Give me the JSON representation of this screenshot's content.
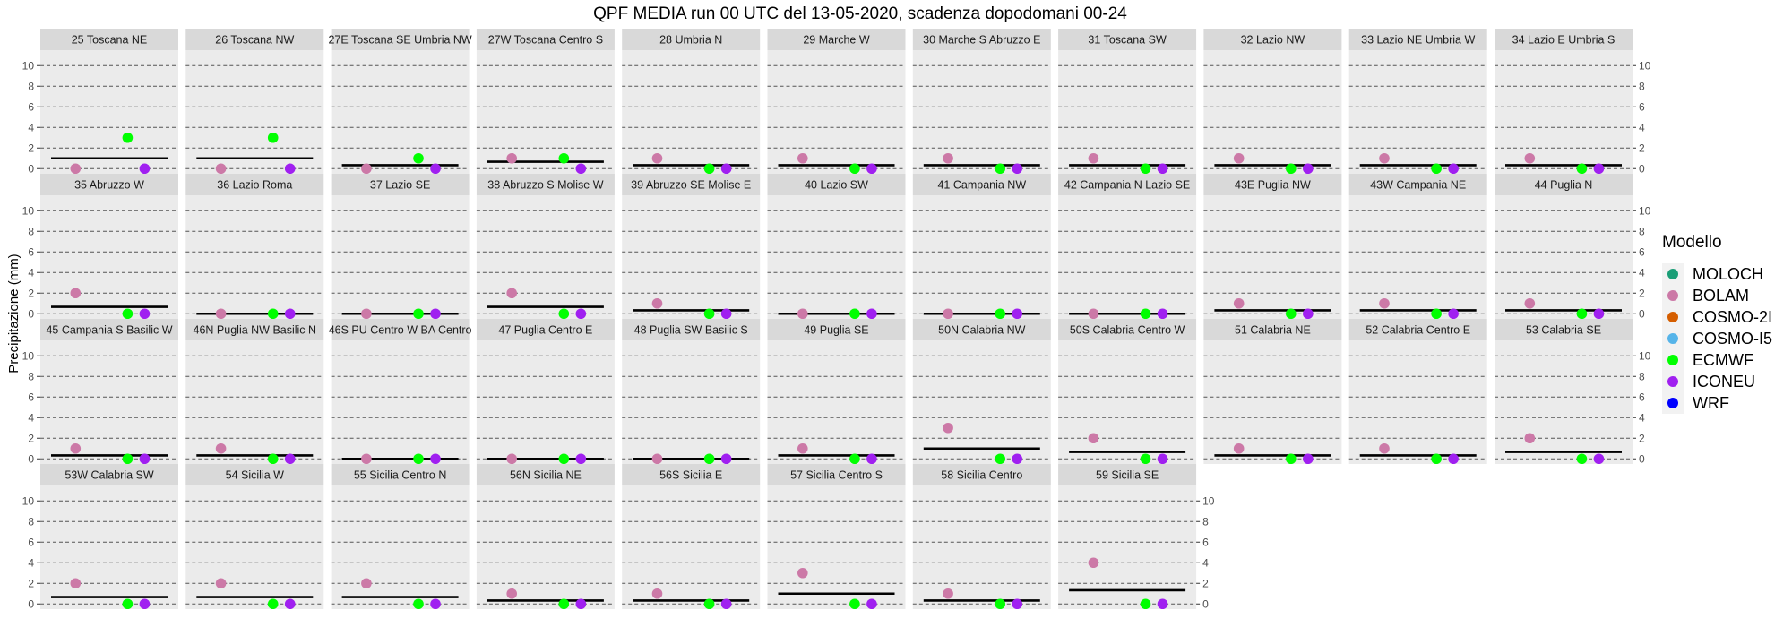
{
  "chart_data": {
    "type": "scatter",
    "title": "QPF MEDIA run 00 UTC del 13-05-2020, scadenza dopodomani 00-24",
    "ylabel": "Precipitazione  (mm)",
    "ylim": [
      -0.5,
      11.5
    ],
    "yticks": [
      0,
      2,
      4,
      6,
      8,
      10
    ],
    "grid": true,
    "legend": {
      "title": "Modello",
      "position": "right",
      "entries": [
        {
          "name": "MOLOCH",
          "color": "#1b9e77"
        },
        {
          "name": "BOLAM",
          "color": "#cc79a7"
        },
        {
          "name": "COSMO-2I",
          "color": "#d55e00"
        },
        {
          "name": "COSMO-I5",
          "color": "#56b4e9"
        },
        {
          "name": "ECMWF",
          "color": "#00ff00"
        },
        {
          "name": "ICONEU",
          "color": "#a020f0"
        },
        {
          "name": "WRF",
          "color": "#0000ff"
        }
      ]
    },
    "series_colors": {
      "BOLAM": "#cc79a7",
      "ECMWF": "#00ff00",
      "ICONEU": "#a020f0"
    },
    "panels": [
      {
        "label": "25 Toscana NE",
        "BOLAM": 0,
        "ECMWF": 3,
        "ICONEU": 0,
        "mean": 1.0
      },
      {
        "label": "26 Toscana NW",
        "BOLAM": 0,
        "ECMWF": 3,
        "ICONEU": 0,
        "mean": 1.0
      },
      {
        "label": "27E Toscana SE Umbria NW",
        "BOLAM": 0,
        "ECMWF": 1,
        "ICONEU": 0,
        "mean": 0.33
      },
      {
        "label": "27W Toscana Centro S",
        "BOLAM": 1,
        "ECMWF": 1,
        "ICONEU": 0,
        "mean": 0.67
      },
      {
        "label": "28 Umbria N",
        "BOLAM": 1,
        "ECMWF": 0,
        "ICONEU": 0,
        "mean": 0.33
      },
      {
        "label": "29 Marche W",
        "BOLAM": 1,
        "ECMWF": 0,
        "ICONEU": 0,
        "mean": 0.33
      },
      {
        "label": "30 Marche S Abruzzo E",
        "BOLAM": 1,
        "ECMWF": 0,
        "ICONEU": 0,
        "mean": 0.33
      },
      {
        "label": "31 Toscana SW",
        "BOLAM": 1,
        "ECMWF": 0,
        "ICONEU": 0,
        "mean": 0.33
      },
      {
        "label": "32 Lazio NW",
        "BOLAM": 1,
        "ECMWF": 0,
        "ICONEU": 0,
        "mean": 0.33
      },
      {
        "label": "33 Lazio NE Umbria W",
        "BOLAM": 1,
        "ECMWF": 0,
        "ICONEU": 0,
        "mean": 0.33
      },
      {
        "label": "34 Lazio E Umbria S",
        "BOLAM": 1,
        "ECMWF": 0,
        "ICONEU": 0,
        "mean": 0.33
      },
      {
        "label": "35 Abruzzo W",
        "BOLAM": 2,
        "ECMWF": 0,
        "ICONEU": 0,
        "mean": 0.67
      },
      {
        "label": "36 Lazio Roma",
        "BOLAM": 0,
        "ECMWF": 0,
        "ICONEU": 0,
        "mean": 0
      },
      {
        "label": "37 Lazio SE",
        "BOLAM": 0,
        "ECMWF": 0,
        "ICONEU": 0,
        "mean": 0
      },
      {
        "label": "38 Abruzzo S Molise W",
        "BOLAM": 2,
        "ECMWF": 0,
        "ICONEU": 0,
        "mean": 0.67
      },
      {
        "label": "39 Abruzzo SE Molise E",
        "BOLAM": 1,
        "ECMWF": 0,
        "ICONEU": 0,
        "mean": 0.33
      },
      {
        "label": "40 Lazio SW",
        "BOLAM": 0,
        "ECMWF": 0,
        "ICONEU": 0,
        "mean": 0
      },
      {
        "label": "41 Campania NW",
        "BOLAM": 0,
        "ECMWF": 0,
        "ICONEU": 0,
        "mean": 0
      },
      {
        "label": "42 Campania N Lazio SE",
        "BOLAM": 0,
        "ECMWF": 0,
        "ICONEU": 0,
        "mean": 0
      },
      {
        "label": "43E Puglia NW",
        "BOLAM": 1,
        "ECMWF": 0,
        "ICONEU": 0,
        "mean": 0.33
      },
      {
        "label": "43W Campania NE",
        "BOLAM": 1,
        "ECMWF": 0,
        "ICONEU": 0,
        "mean": 0.33
      },
      {
        "label": "44 Puglia N",
        "BOLAM": 1,
        "ECMWF": 0,
        "ICONEU": 0,
        "mean": 0.33
      },
      {
        "label": "45 Campania S Basilic W",
        "BOLAM": 1,
        "ECMWF": 0,
        "ICONEU": 0,
        "mean": 0.33
      },
      {
        "label": "46N Puglia NW Basilic N",
        "BOLAM": 1,
        "ECMWF": 0,
        "ICONEU": 0,
        "mean": 0.33
      },
      {
        "label": "46S PU Centro W BA Centro",
        "BOLAM": 0,
        "ECMWF": 0,
        "ICONEU": 0,
        "mean": 0
      },
      {
        "label": "47 Puglia Centro E",
        "BOLAM": 0,
        "ECMWF": 0,
        "ICONEU": 0,
        "mean": 0
      },
      {
        "label": "48 Puglia SW Basilic S",
        "BOLAM": 0,
        "ECMWF": 0,
        "ICONEU": 0,
        "mean": 0
      },
      {
        "label": "49 Puglia SE",
        "BOLAM": 1,
        "ECMWF": 0,
        "ICONEU": 0,
        "mean": 0.33
      },
      {
        "label": "50N Calabria NW",
        "BOLAM": 3,
        "ECMWF": 0,
        "ICONEU": 0,
        "mean": 1.0
      },
      {
        "label": "50S Calabria Centro W",
        "BOLAM": 2,
        "ECMWF": 0,
        "ICONEU": 0,
        "mean": 0.67
      },
      {
        "label": "51 Calabria NE",
        "BOLAM": 1,
        "ECMWF": 0,
        "ICONEU": 0,
        "mean": 0.33
      },
      {
        "label": "52 Calabria Centro E",
        "BOLAM": 1,
        "ECMWF": 0,
        "ICONEU": 0,
        "mean": 0.33
      },
      {
        "label": "53 Calabria SE",
        "BOLAM": 2,
        "ECMWF": 0,
        "ICONEU": 0,
        "mean": 0.67
      },
      {
        "label": "53W Calabria SW",
        "BOLAM": 2,
        "ECMWF": 0,
        "ICONEU": 0,
        "mean": 0.67
      },
      {
        "label": "54 Sicilia W",
        "BOLAM": 2,
        "ECMWF": 0,
        "ICONEU": 0,
        "mean": 0.67
      },
      {
        "label": "55 Sicilia Centro N",
        "BOLAM": 2,
        "ECMWF": 0,
        "ICONEU": 0,
        "mean": 0.67
      },
      {
        "label": "56N Sicilia NE",
        "BOLAM": 1,
        "ECMWF": 0,
        "ICONEU": 0,
        "mean": 0.33
      },
      {
        "label": "56S Sicilia E",
        "BOLAM": 1,
        "ECMWF": 0,
        "ICONEU": 0,
        "mean": 0.33
      },
      {
        "label": "57 Sicilia Centro S",
        "BOLAM": 3,
        "ECMWF": 0,
        "ICONEU": 0,
        "mean": 1.0
      },
      {
        "label": "58 Sicilia Centro",
        "BOLAM": 1,
        "ECMWF": 0,
        "ICONEU": 0,
        "mean": 0.33
      },
      {
        "label": "59 Sicilia SE",
        "BOLAM": 4,
        "ECMWF": 0,
        "ICONEU": 0,
        "mean": 1.33
      }
    ]
  }
}
